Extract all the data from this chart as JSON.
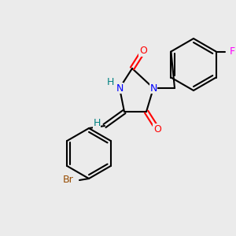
{
  "background_color": "#ebebeb",
  "bond_color": "#000000",
  "bond_lw": 1.5,
  "atom_colors": {
    "N": "#0000ff",
    "O": "#ff0000",
    "Br": "#964B00",
    "F": "#ff00ff",
    "H": "#008080",
    "C": "#000000"
  },
  "font_size_atom": 9,
  "font_size_small": 8
}
